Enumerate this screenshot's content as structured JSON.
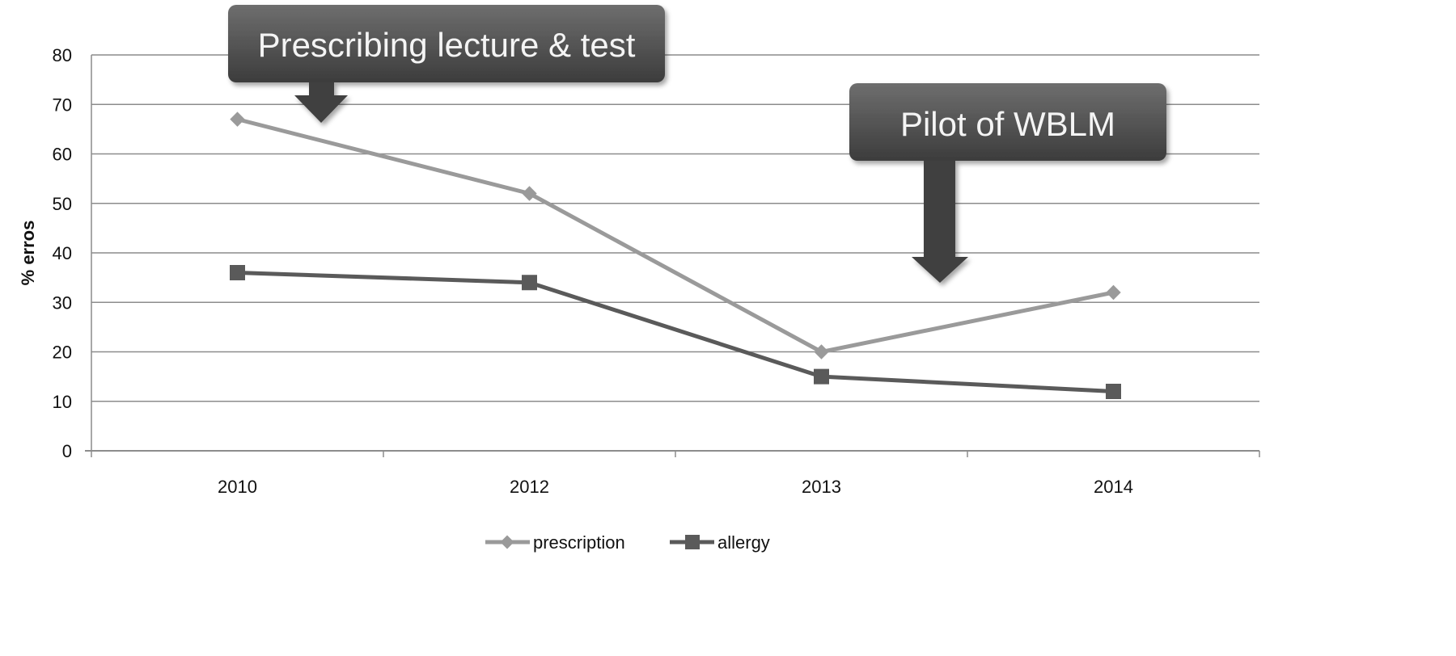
{
  "chart_data": {
    "type": "line",
    "categories": [
      "2010",
      "2012",
      "2013",
      "2014"
    ],
    "series": [
      {
        "name": "prescription",
        "values": [
          67,
          52,
          20,
          32
        ],
        "color": "#9a9a9a",
        "marker": "diamond"
      },
      {
        "name": "allergy",
        "values": [
          36,
          34,
          15,
          12
        ],
        "color": "#5a5a5a",
        "marker": "square"
      }
    ],
    "ylabel": "% erros",
    "xlabel": "",
    "ylim": [
      0,
      80
    ],
    "yticks": [
      "0",
      "10",
      "20",
      "30",
      "40",
      "50",
      "60",
      "70",
      "80"
    ],
    "grid": true,
    "legend_position": "bottom",
    "annotations": [
      {
        "text": "Prescribing lecture & test",
        "points_to": "between 2010 and 2012"
      },
      {
        "text": "Pilot of WBLM",
        "points_to": "between 2013 and 2014"
      }
    ]
  }
}
